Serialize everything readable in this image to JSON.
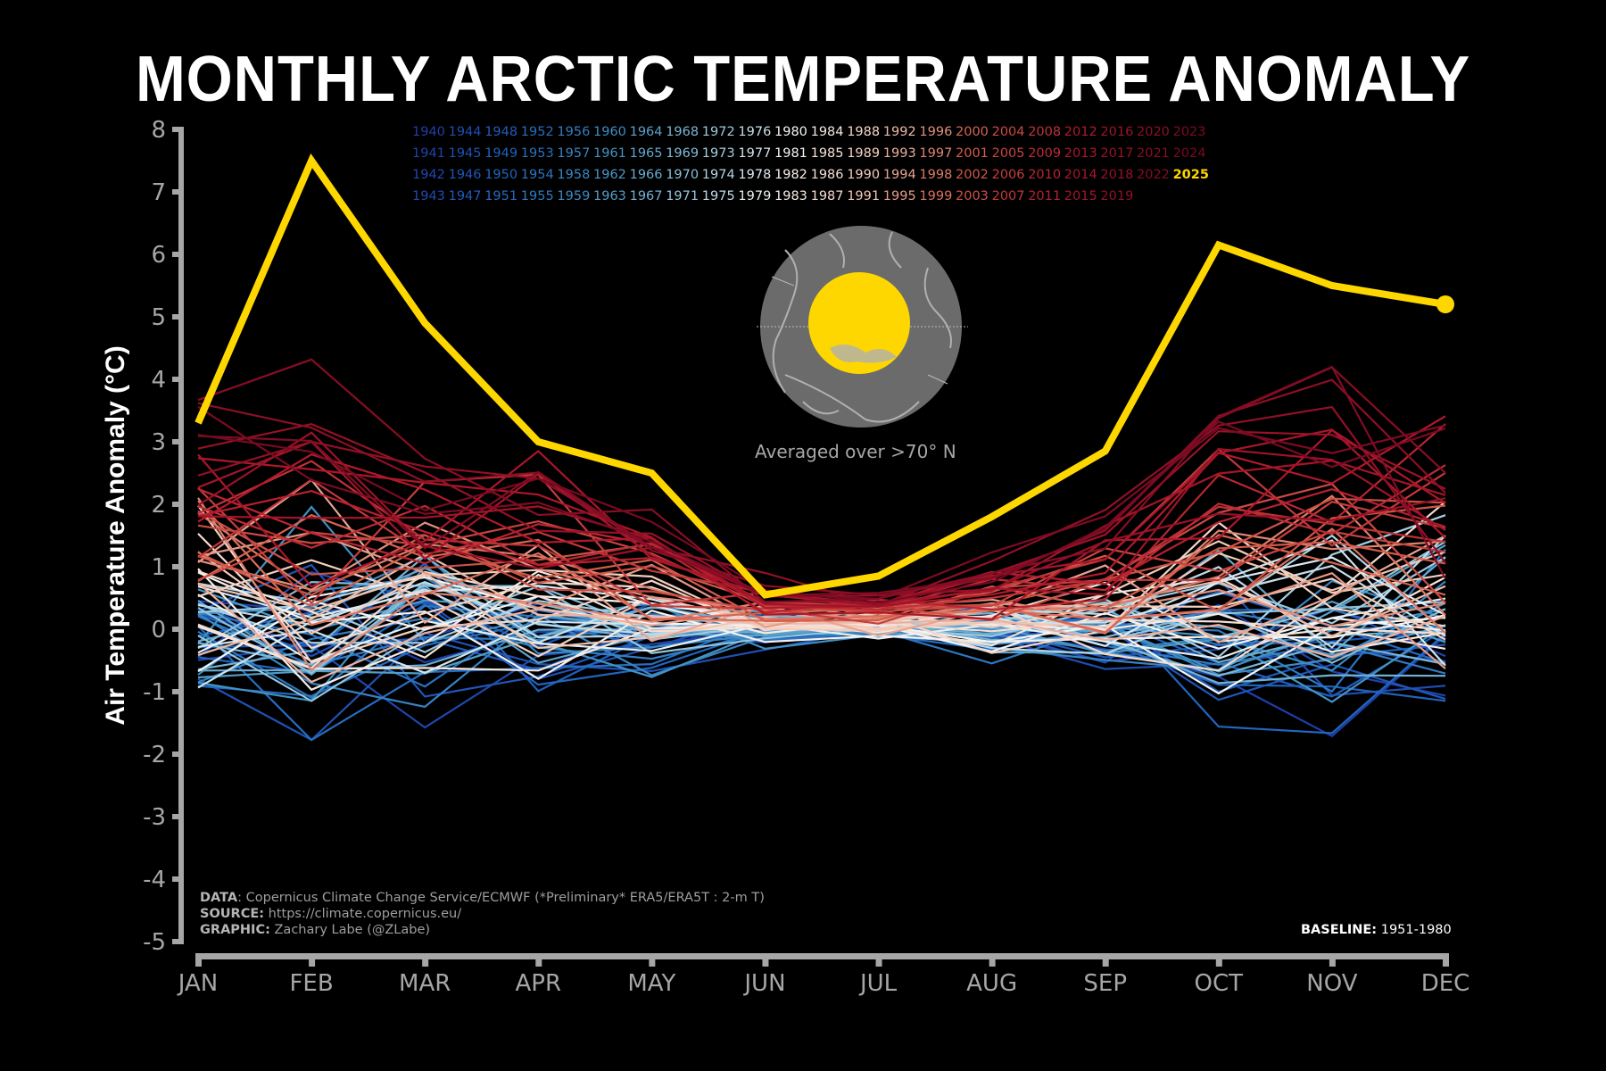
{
  "title": "MONTHLY ARCTIC TEMPERATURE ANOMALY",
  "colors": {
    "background": "#000000",
    "axis": "#a6a6a6",
    "highlight": "#ffd700",
    "cold": "#1f3fa8",
    "neutral": "#f7f7f7",
    "warm": "#8b0f24"
  },
  "inset": {
    "icon": "arctic-polar-map-icon",
    "caption": "Averaged over >70° N"
  },
  "credits": {
    "data_label": "DATA",
    "data_text": ": Copernicus Climate Change Service/ECMWF (*Preliminary* ERA5/ERA5T : 2-m T)",
    "source_label": "SOURCE:",
    "source_text": " https://climate.copernicus.eu/",
    "graphic_label": "GRAPHIC:",
    "graphic_text": " Zachary Labe (@ZLabe)"
  },
  "baseline": {
    "label": "BASELINE:",
    "value": "1951-1980"
  },
  "chart_data": {
    "type": "line",
    "title": "MONTHLY ARCTIC TEMPERATURE ANOMALY",
    "xlabel": "",
    "ylabel": "Air Temperature Anomaly (°C)",
    "categories": [
      "JAN",
      "FEB",
      "MAR",
      "APR",
      "MAY",
      "JUN",
      "JUL",
      "AUG",
      "SEP",
      "OCT",
      "NOV",
      "DEC"
    ],
    "ylim": [
      -5,
      8
    ],
    "yticks": [
      8,
      7,
      6,
      5,
      4,
      3,
      2,
      1,
      0,
      -1,
      -2,
      -3,
      -4,
      -5
    ],
    "ytick_labels": [
      "8",
      "7",
      "6",
      "5",
      "4",
      "3",
      "2",
      "1",
      "0",
      "-1",
      "-2",
      "-3",
      "-4",
      "-5"
    ],
    "grid": false,
    "legend_position": "top-center",
    "legend_columns": [
      [
        "1940",
        "1941",
        "1942",
        "1943"
      ],
      [
        "1944",
        "1945",
        "1946",
        "1947"
      ],
      [
        "1948",
        "1949",
        "1950",
        "1951"
      ],
      [
        "1952",
        "1953",
        "1954",
        "1955"
      ],
      [
        "1956",
        "1957",
        "1958",
        "1959"
      ],
      [
        "1960",
        "1961",
        "1962",
        "1963"
      ],
      [
        "1964",
        "1965",
        "1966",
        "1967"
      ],
      [
        "1968",
        "1969",
        "1970",
        "1971"
      ],
      [
        "1972",
        "1973",
        "1974",
        "1975"
      ],
      [
        "1976",
        "1977",
        "1978",
        "1979"
      ],
      [
        "1980",
        "1981",
        "1982",
        "1983"
      ],
      [
        "1984",
        "1985",
        "1986",
        "1987"
      ],
      [
        "1988",
        "1989",
        "1990",
        "1991"
      ],
      [
        "1992",
        "1993",
        "1994",
        "1995"
      ],
      [
        "1996",
        "1997",
        "1998",
        "1999"
      ],
      [
        "2000",
        "2001",
        "2002",
        "2003"
      ],
      [
        "2004",
        "2005",
        "2006",
        "2007"
      ],
      [
        "2008",
        "2009",
        "2010",
        "2011"
      ],
      [
        "2012",
        "2013",
        "2014",
        "2015"
      ],
      [
        "2016",
        "2017",
        "2018",
        "2019"
      ],
      [
        "2020",
        "2021",
        "2022"
      ],
      [
        "2023",
        "2024",
        "2025"
      ]
    ],
    "highlight_series": {
      "name": "2025",
      "values": [
        3.3,
        7.5,
        4.9,
        3.0,
        2.5,
        0.55,
        0.85,
        1.8,
        2.85,
        6.15,
        5.5,
        5.2
      ],
      "color": "#ffd700"
    },
    "historical_years": "1940-2024",
    "note": "Historical year series (1940–2024) are drawn as thin lines coloured cold→warm by year; individual values are not legible in the source image and are approximated by the drawing script."
  }
}
